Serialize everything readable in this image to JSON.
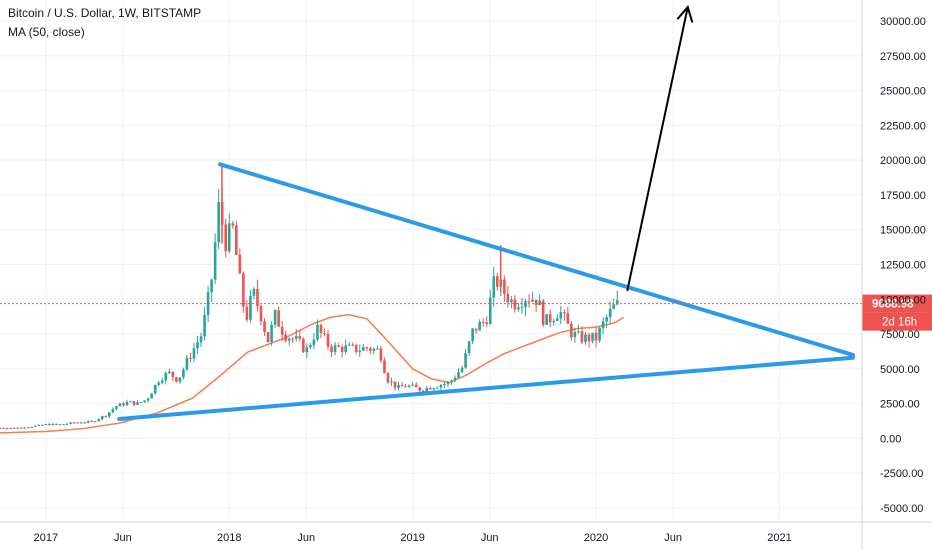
{
  "header": {
    "symbol_line": "Bitcoin / U.S. Dollar, 1W, BITSTAMP",
    "indicator_line": "MA (50, close)"
  },
  "price_label": {
    "value": "9688.98",
    "countdown": "2d 16h",
    "color": "#ef5350"
  },
  "colors": {
    "up": "#26a69a",
    "down": "#ef5350",
    "ma": "#f57c4c",
    "trendline": "#2b9be8",
    "arrow": "#000000",
    "grid": "#eef0f3"
  },
  "chart_data": {
    "type": "candlestick",
    "title": "",
    "xlabel": "",
    "ylabel": "",
    "ylim": [
      -6000,
      32000
    ],
    "xlim": [
      2016.75,
      2021.45
    ],
    "y_ticks": [
      "30000.00",
      "27500.00",
      "25000.00",
      "22500.00",
      "20000.00",
      "17500.00",
      "15000.00",
      "12500.00",
      "10000.00",
      "7500.00",
      "5000.00",
      "2500.00",
      "0.00",
      "-2500.00",
      "-5000.00"
    ],
    "y_tick_values": [
      30000,
      27500,
      25000,
      22500,
      20000,
      17500,
      15000,
      12500,
      10000,
      7500,
      5000,
      2500,
      0,
      -2500,
      -5000
    ],
    "x_ticks": [
      {
        "label": "2017",
        "t": 2017.0
      },
      {
        "label": "Jun",
        "t": 2017.42
      },
      {
        "label": "2018",
        "t": 2018.0
      },
      {
        "label": "Jun",
        "t": 2018.42
      },
      {
        "label": "2019",
        "t": 2019.0
      },
      {
        "label": "Jun",
        "t": 2019.42
      },
      {
        "label": "2020",
        "t": 2020.0
      },
      {
        "label": "Jun",
        "t": 2020.42
      },
      {
        "label": "2021",
        "t": 2021.0
      }
    ],
    "price_path": [
      [
        2016.75,
        750
      ],
      [
        2016.85,
        750
      ],
      [
        2016.95,
        900
      ],
      [
        2017.0,
        1000
      ],
      [
        2017.08,
        1000
      ],
      [
        2017.17,
        1150
      ],
      [
        2017.25,
        1200
      ],
      [
        2017.33,
        1700
      ],
      [
        2017.38,
        2300
      ],
      [
        2017.45,
        2600
      ],
      [
        2017.5,
        2500
      ],
      [
        2017.55,
        2800
      ],
      [
        2017.62,
        4300
      ],
      [
        2017.67,
        4700
      ],
      [
        2017.72,
        4200
      ],
      [
        2017.78,
        5800
      ],
      [
        2017.85,
        7500
      ],
      [
        2017.9,
        11000
      ],
      [
        2017.95,
        17500
      ],
      [
        2017.97,
        14000
      ],
      [
        2018.02,
        15000
      ],
      [
        2018.06,
        11000
      ],
      [
        2018.09,
        8500
      ],
      [
        2018.13,
        10500
      ],
      [
        2018.17,
        9000
      ],
      [
        2018.21,
        7000
      ],
      [
        2018.25,
        8800
      ],
      [
        2018.3,
        7500
      ],
      [
        2018.37,
        7000
      ],
      [
        2018.42,
        6300
      ],
      [
        2018.48,
        7900
      ],
      [
        2018.55,
        6500
      ],
      [
        2018.62,
        6500
      ],
      [
        2018.7,
        6400
      ],
      [
        2018.75,
        6500
      ],
      [
        2018.82,
        6300
      ],
      [
        2018.86,
        4300
      ],
      [
        2018.92,
        3600
      ],
      [
        2018.96,
        3800
      ],
      [
        2019.05,
        3500
      ],
      [
        2019.12,
        3800
      ],
      [
        2019.2,
        4000
      ],
      [
        2019.27,
        5100
      ],
      [
        2019.33,
        7800
      ],
      [
        2019.4,
        8500
      ],
      [
        2019.45,
        11500
      ],
      [
        2019.5,
        10500
      ],
      [
        2019.55,
        9700
      ],
      [
        2019.62,
        10200
      ],
      [
        2019.68,
        10000
      ],
      [
        2019.72,
        8300
      ],
      [
        2019.8,
        9200
      ],
      [
        2019.87,
        7500
      ],
      [
        2019.92,
        7200
      ],
      [
        2019.96,
        7200
      ],
      [
        2020.0,
        7200
      ],
      [
        2020.05,
        8500
      ],
      [
        2020.1,
        9500
      ],
      [
        2020.13,
        9700
      ]
    ],
    "series": [
      {
        "name": "MA (50, close)",
        "x": [
          2016.75,
          2017.0,
          2017.2,
          2017.4,
          2017.6,
          2017.8,
          2017.95,
          2018.1,
          2018.3,
          2018.45,
          2018.55,
          2018.65,
          2018.75,
          2018.85,
          2019.0,
          2019.1,
          2019.2,
          2019.3,
          2019.4,
          2019.5,
          2019.6,
          2019.7,
          2019.8,
          2019.9,
          2020.0,
          2020.1,
          2020.15
        ],
        "values": [
          400,
          500,
          700,
          1100,
          1800,
          2900,
          4500,
          6200,
          7200,
          8200,
          8700,
          8900,
          8600,
          7200,
          5000,
          4300,
          4000,
          4600,
          5400,
          6100,
          6600,
          7100,
          7600,
          7900,
          8000,
          8300,
          8700
        ]
      }
    ],
    "annotations": {
      "upper_trendline": {
        "from": [
          2017.95,
          19700
        ],
        "to": [
          2021.4,
          6000
        ]
      },
      "lower_trendline": {
        "from": [
          2017.4,
          1400
        ],
        "to": [
          2021.4,
          5800
        ]
      },
      "arrow": {
        "from": [
          2020.17,
          10600
        ],
        "to": [
          2020.5,
          31000
        ]
      },
      "price_line": 9688.98
    }
  }
}
